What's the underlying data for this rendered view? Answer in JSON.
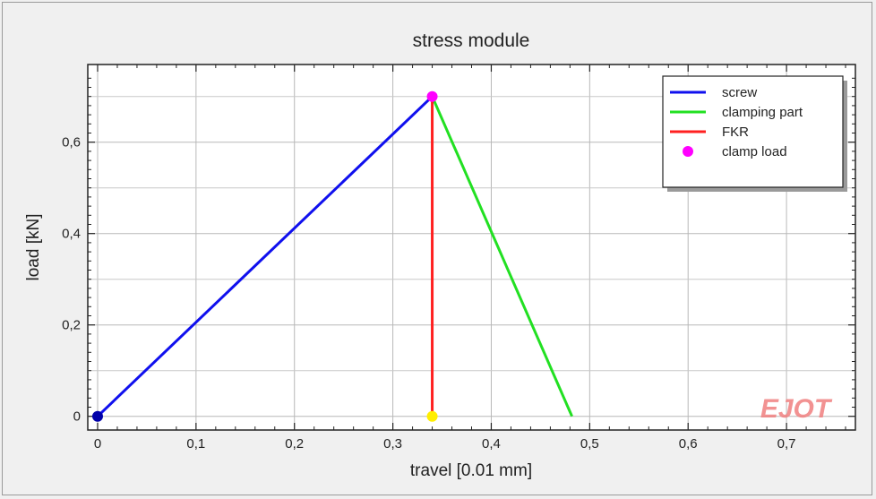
{
  "chart_data": {
    "type": "line",
    "title": "stress module",
    "xlabel": "travel [0.01 mm]",
    "ylabel": "load [kN]",
    "xlim": [
      -0.01,
      0.77
    ],
    "ylim": [
      -0.03,
      0.77
    ],
    "x_ticks": [
      0,
      0.1,
      0.2,
      0.3,
      0.4,
      0.5,
      0.6,
      0.7
    ],
    "x_tick_labels": [
      "0",
      "0,1",
      "0,2",
      "0,3",
      "0,4",
      "0,5",
      "0,6",
      "0,7"
    ],
    "y_ticks": [
      0,
      0.2,
      0.4,
      0.6
    ],
    "y_tick_labels": [
      "0",
      "0,2",
      "0,4",
      "0,6"
    ],
    "grid": true,
    "legend_position": "top-right",
    "series": [
      {
        "name": "screw",
        "color": "#1010ee",
        "kind": "line",
        "points": [
          [
            0,
            0
          ],
          [
            0.34,
            0.7
          ]
        ]
      },
      {
        "name": "clamping part",
        "color": "#22e022",
        "kind": "line",
        "points": [
          [
            0.34,
            0.7
          ],
          [
            0.482,
            0
          ]
        ]
      },
      {
        "name": "FKR",
        "color": "#ff2020",
        "kind": "line",
        "points": [
          [
            0.34,
            0
          ],
          [
            0.34,
            0.7
          ]
        ]
      },
      {
        "name": "clamp load",
        "color": "#ff00ff",
        "kind": "point",
        "points": [
          [
            0.34,
            0.7
          ]
        ]
      }
    ],
    "extra_markers": [
      {
        "color": "#ffee00",
        "point": [
          0.34,
          0
        ]
      },
      {
        "color": "#0000aa",
        "point": [
          0,
          0
        ]
      }
    ],
    "watermark": "EJOT",
    "watermark_color": "#f08080"
  }
}
